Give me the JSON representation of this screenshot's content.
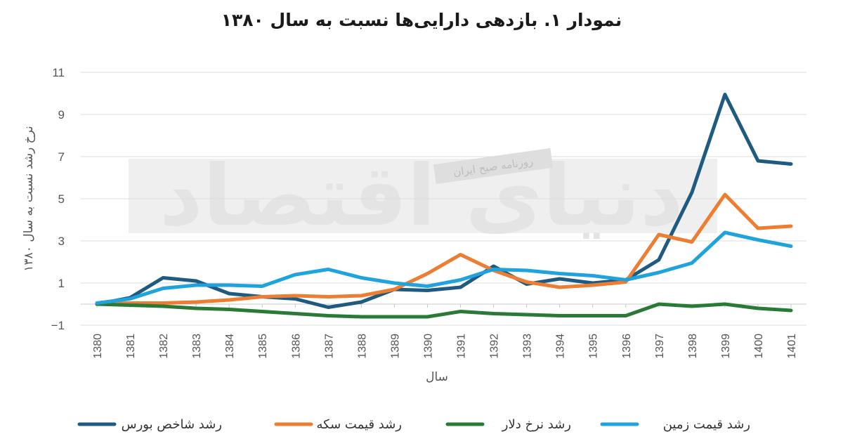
{
  "chart_data": {
    "type": "line",
    "title": "نمودار ۱. بازدهی دارایی‌ها نسبت به سال ۱۳۸۰",
    "xlabel": "سال",
    "ylabel": "نرخ رشد نسبت به سال ۱۳۸۰",
    "x": [
      "1380",
      "1381",
      "1382",
      "1383",
      "1384",
      "1385",
      "1386",
      "1387",
      "1388",
      "1389",
      "1390",
      "1391",
      "1392",
      "1393",
      "1394",
      "1395",
      "1396",
      "1397",
      "1398",
      "1399",
      "1400",
      "1401"
    ],
    "ylim": [
      -1,
      11
    ],
    "yticks": [
      "-1",
      "1",
      "3",
      "5",
      "7",
      "9",
      "11"
    ],
    "grid": true,
    "legend_position": "bottom",
    "series": [
      {
        "name": "رشد شاخص بورس",
        "color": "#1f5a80",
        "values": [
          0,
          0.3,
          1.25,
          1.1,
          0.5,
          0.35,
          0.25,
          -0.15,
          0.1,
          0.7,
          0.65,
          0.8,
          1.8,
          0.95,
          1.2,
          1.0,
          1.15,
          2.1,
          5.3,
          9.95,
          6.8,
          6.65
        ]
      },
      {
        "name": "رشد قیمت سکه",
        "color": "#ed7d31",
        "values": [
          0,
          0.05,
          0.05,
          0.1,
          0.2,
          0.35,
          0.4,
          0.35,
          0.4,
          0.7,
          1.45,
          2.35,
          1.6,
          1.05,
          0.8,
          0.9,
          1.05,
          3.3,
          2.95,
          5.2,
          3.6,
          3.7
        ]
      },
      {
        "name": "رشد نرخ دلار",
        "color": "#2a7a37",
        "values": [
          0,
          -0.05,
          -0.1,
          -0.2,
          -0.25,
          -0.35,
          -0.45,
          -0.55,
          -0.6,
          -0.6,
          -0.6,
          -0.35,
          -0.45,
          -0.5,
          -0.55,
          -0.55,
          -0.55,
          0.0,
          -0.1,
          0.0,
          -0.2,
          -0.3
        ]
      },
      {
        "name": "رشد قیمت زمین",
        "color": "#1fa3dc",
        "values": [
          0.05,
          0.25,
          0.75,
          0.9,
          0.9,
          0.85,
          1.4,
          1.65,
          1.25,
          1.0,
          0.85,
          1.15,
          1.65,
          1.6,
          1.45,
          1.35,
          1.15,
          1.5,
          1.95,
          3.4,
          3.05,
          2.75
        ]
      }
    ]
  },
  "watermark": {
    "logo_text": "دنیای اقتصاد",
    "subtitle": "روزنامه صبح ایران"
  }
}
